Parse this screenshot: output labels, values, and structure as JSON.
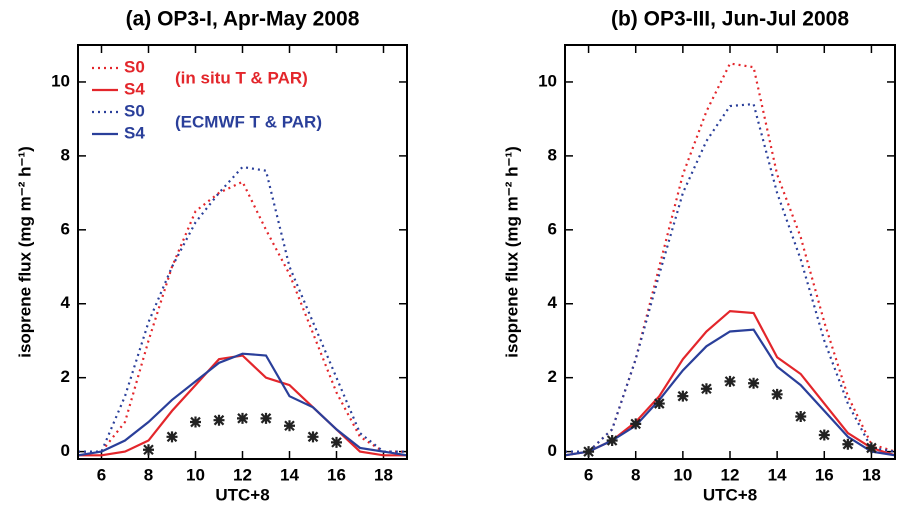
{
  "chart_data": [
    {
      "type": "line",
      "title": "(a) OP3-I, Apr-May 2008",
      "xlabel": "UTC+8",
      "ylabel": "isoprene flux (mg m⁻² h⁻¹)",
      "x": [
        5,
        6,
        7,
        8,
        9,
        10,
        11,
        12,
        13,
        14,
        15,
        16,
        17,
        18,
        19
      ],
      "xlim": [
        5,
        19
      ],
      "ylim": [
        -0.2,
        11
      ],
      "xticks": [
        6,
        8,
        10,
        12,
        14,
        16,
        18
      ],
      "yticks": [
        0,
        2,
        4,
        6,
        8,
        10
      ],
      "legend": "upper left",
      "annotations": [
        "(in situ T & PAR)",
        "(ECMWF T & PAR)"
      ],
      "series": [
        {
          "name": "S0",
          "color": "#e3262b",
          "style": "dotted",
          "values": [
            0,
            0,
            0.8,
            3.0,
            5.0,
            6.5,
            7.0,
            7.3,
            6.0,
            4.8,
            3.2,
            1.6,
            0.4,
            0,
            0
          ]
        },
        {
          "name": "S4",
          "color": "#e3262b",
          "style": "solid",
          "values": [
            -0.1,
            -0.1,
            0,
            0.3,
            1.1,
            1.8,
            2.5,
            2.6,
            2.0,
            1.8,
            1.2,
            0.6,
            0,
            -0.1,
            -0.1
          ]
        },
        {
          "name": "S0",
          "color": "#2a3f9a",
          "style": "dotted",
          "values": [
            0,
            0,
            1.5,
            3.5,
            5.0,
            6.2,
            7.0,
            7.7,
            7.6,
            5.0,
            3.5,
            2.0,
            0.5,
            0,
            0
          ]
        },
        {
          "name": "S4",
          "color": "#2a3f9a",
          "style": "solid",
          "values": [
            -0.1,
            0,
            0.3,
            0.8,
            1.4,
            1.9,
            2.4,
            2.65,
            2.6,
            1.5,
            1.2,
            0.6,
            0.1,
            0,
            -0.1
          ]
        },
        {
          "color": "#222222",
          "style": "markers",
          "values": [
            null,
            null,
            null,
            0.05,
            0.4,
            0.8,
            0.85,
            0.9,
            0.9,
            0.7,
            0.4,
            0.25,
            null,
            null,
            null
          ]
        }
      ]
    },
    {
      "type": "line",
      "title": "(b) OP3-III, Jun-Jul 2008",
      "xlabel": "UTC+8",
      "ylabel": "isoprene flux (mg m⁻² h⁻¹)",
      "x": [
        5,
        6,
        7,
        8,
        9,
        10,
        11,
        12,
        13,
        14,
        15,
        16,
        17,
        18,
        19
      ],
      "xlim": [
        5,
        19
      ],
      "ylim": [
        -0.2,
        11
      ],
      "xticks": [
        6,
        8,
        10,
        12,
        14,
        16,
        18
      ],
      "yticks": [
        0,
        2,
        4,
        6,
        8,
        10
      ],
      "series": [
        {
          "color": "#e3262b",
          "style": "dotted",
          "values": [
            0,
            0,
            0.6,
            2.5,
            5.0,
            7.5,
            9.2,
            10.5,
            10.4,
            7.5,
            5.8,
            3.5,
            1.5,
            0.2,
            0
          ]
        },
        {
          "color": "#e3262b",
          "style": "solid",
          "values": [
            -0.1,
            0,
            0.3,
            0.8,
            1.5,
            2.5,
            3.25,
            3.8,
            3.75,
            2.55,
            2.1,
            1.3,
            0.5,
            0.1,
            -0.1
          ]
        },
        {
          "color": "#2a3f9a",
          "style": "dotted",
          "values": [
            0,
            0,
            0.6,
            2.5,
            4.8,
            7.0,
            8.4,
            9.35,
            9.4,
            7.0,
            5.2,
            3.0,
            1.3,
            0.1,
            0
          ]
        },
        {
          "color": "#2a3f9a",
          "style": "solid",
          "values": [
            -0.1,
            0,
            0.3,
            0.7,
            1.4,
            2.2,
            2.85,
            3.25,
            3.3,
            2.3,
            1.8,
            1.1,
            0.4,
            0,
            -0.1
          ]
        },
        {
          "color": "#222222",
          "style": "markers",
          "values": [
            null,
            0,
            0.3,
            0.75,
            1.3,
            1.5,
            1.7,
            1.9,
            1.85,
            1.55,
            0.95,
            0.45,
            0.2,
            0.1,
            null
          ]
        }
      ]
    }
  ]
}
